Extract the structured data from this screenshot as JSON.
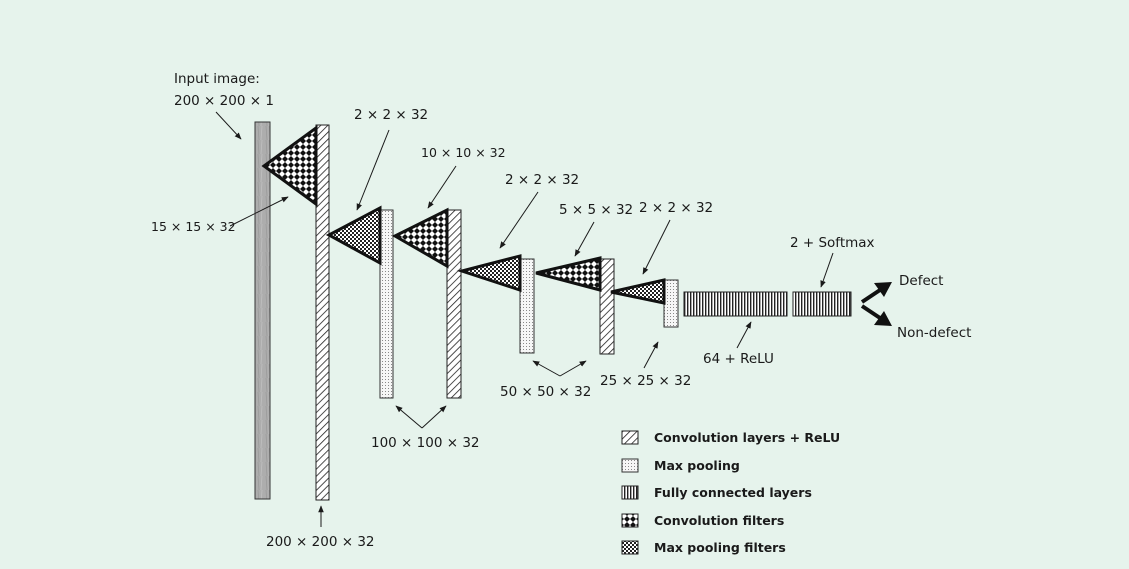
{
  "labels": {
    "input_title": "Input image:",
    "input_size": "200 × 200 × 1",
    "filter1": "15 × 15 × 32",
    "conv1_size": "200 × 200 × 32",
    "pool_filter1": "2 × 2 × 32",
    "filter2": "10 × 10 × 32",
    "conv2_size": "100 × 100 × 32",
    "pool_filter2": "2 × 2 × 32",
    "filter3": "5 × 5 × 32",
    "conv3_size": "50 × 50 × 32",
    "pool_filter3": "2 × 2 × 32",
    "pool3_size": "25 × 25 × 32",
    "fc1": "64 + ReLU",
    "fc2": "2 + Softmax",
    "out_defect": "Defect",
    "out_nondefect": "Non-defect"
  },
  "legend": [
    {
      "key": "conv",
      "label": "Convolution layers + ReLU"
    },
    {
      "key": "pool",
      "label": "Max pooling"
    },
    {
      "key": "fc",
      "label": "Fully connected layers"
    },
    {
      "key": "convfilter",
      "label": "Convolution filters"
    },
    {
      "key": "poolfilter",
      "label": "Max pooling filters"
    }
  ],
  "colors": {
    "background": "#e6f3ec",
    "stroke": "#1a1a1a",
    "input_fill": "#a9a9a9"
  }
}
